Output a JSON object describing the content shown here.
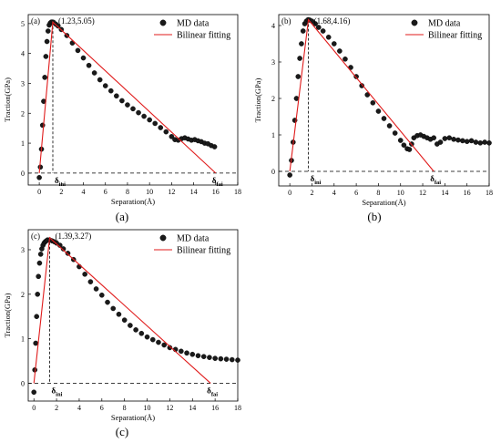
{
  "chart_data": [
    {
      "type": "scatter",
      "panel_label": "(a)",
      "caption": "(a)",
      "xlabel": "Separation(Å)",
      "ylabel": "Traction(GPa)",
      "xlim": [
        -1,
        18
      ],
      "ylim": [
        -0.4,
        5.3
      ],
      "x_ticks": [
        "0",
        "2",
        "4",
        "6",
        "8",
        "10",
        "12",
        "14",
        "16",
        "18"
      ],
      "y_ticks": [
        "0",
        "1",
        "2",
        "3",
        "4",
        "5"
      ],
      "peak_label": "(1.23,5.05)",
      "delta_ini": {
        "symbol": "δ",
        "subscript": "ini",
        "x": 1.23
      },
      "delta_fai": {
        "symbol": "δ",
        "subscript": "fai",
        "x": 16.0
      },
      "legend": [
        "MD data",
        "Bilinear fitting"
      ],
      "legend_position": "top-right",
      "series": [
        {
          "name": "MD data",
          "x": [
            0,
            0.1,
            0.2,
            0.3,
            0.4,
            0.5,
            0.6,
            0.7,
            0.8,
            0.9,
            1.0,
            1.1,
            1.2,
            1.3,
            1.5,
            1.7,
            2,
            2.5,
            3,
            3.5,
            4,
            4.5,
            5,
            5.5,
            6,
            6.5,
            7,
            7.5,
            8,
            8.5,
            9,
            9.5,
            10,
            10.5,
            11,
            11.5,
            12,
            12.3,
            12.6,
            12.9,
            13.2,
            13.5,
            13.8,
            14.1,
            14.4,
            14.7,
            15,
            15.3,
            15.6,
            15.9
          ],
          "y": [
            -0.15,
            0.2,
            0.8,
            1.6,
            2.4,
            3.2,
            3.9,
            4.4,
            4.75,
            4.95,
            5.02,
            5.05,
            5.05,
            5.04,
            4.98,
            4.92,
            4.8,
            4.6,
            4.35,
            4.1,
            3.85,
            3.6,
            3.35,
            3.12,
            2.92,
            2.75,
            2.58,
            2.42,
            2.28,
            2.15,
            2.02,
            1.9,
            1.78,
            1.66,
            1.52,
            1.38,
            1.22,
            1.12,
            1.1,
            1.15,
            1.18,
            1.14,
            1.1,
            1.12,
            1.08,
            1.05,
            1.0,
            0.98,
            0.92,
            0.88
          ]
        },
        {
          "name": "Bilinear fitting",
          "x": [
            0,
            1.23,
            16.0
          ],
          "y": [
            0,
            5.05,
            0
          ]
        }
      ]
    },
    {
      "type": "scatter",
      "panel_label": "(b)",
      "caption": "(b)",
      "xlabel": "Separation(Å)",
      "ylabel": "Traction(GPa)",
      "xlim": [
        -1,
        18
      ],
      "ylim": [
        -0.4,
        4.3
      ],
      "x_ticks": [
        "0",
        "2",
        "4",
        "6",
        "8",
        "10",
        "12",
        "14",
        "16",
        "18"
      ],
      "y_ticks": [
        "0",
        "1",
        "2",
        "3",
        "4"
      ],
      "peak_label": "(1.68,4.16)",
      "delta_ini": {
        "symbol": "δ",
        "subscript": "ini",
        "x": 1.68
      },
      "delta_fai": {
        "symbol": "δ",
        "subscript": "fai",
        "x": 13.0
      },
      "legend": [
        "MD data",
        "Bilinear fitting"
      ],
      "legend_position": "top-right",
      "series": [
        {
          "name": "MD data",
          "x": [
            0,
            0.15,
            0.3,
            0.45,
            0.6,
            0.75,
            0.9,
            1.05,
            1.2,
            1.35,
            1.5,
            1.65,
            1.8,
            2,
            2.3,
            2.6,
            3,
            3.5,
            4,
            4.5,
            5,
            5.5,
            6,
            6.5,
            7,
            7.5,
            8,
            8.5,
            9,
            9.5,
            10,
            10.3,
            10.6,
            10.8,
            11,
            11.2,
            11.5,
            11.8,
            12.1,
            12.4,
            12.7,
            13,
            13.3,
            13.6,
            14,
            14.4,
            14.8,
            15.2,
            15.6,
            16,
            16.4,
            16.8,
            17.2,
            17.6,
            18
          ],
          "y": [
            -0.1,
            0.3,
            0.8,
            1.4,
            2.0,
            2.6,
            3.1,
            3.5,
            3.85,
            4.05,
            4.12,
            4.16,
            4.15,
            4.12,
            4.05,
            3.95,
            3.85,
            3.68,
            3.5,
            3.3,
            3.08,
            2.85,
            2.6,
            2.35,
            2.1,
            1.88,
            1.65,
            1.45,
            1.25,
            1.05,
            0.85,
            0.72,
            0.62,
            0.6,
            0.75,
            0.92,
            0.98,
            1.0,
            0.96,
            0.92,
            0.88,
            0.92,
            0.75,
            0.8,
            0.9,
            0.92,
            0.88,
            0.86,
            0.84,
            0.82,
            0.84,
            0.8,
            0.78,
            0.8,
            0.78
          ]
        },
        {
          "name": "Bilinear fitting",
          "x": [
            0,
            1.68,
            13.0
          ],
          "y": [
            0,
            4.16,
            0
          ]
        }
      ]
    },
    {
      "type": "scatter",
      "panel_label": "(c)",
      "caption": "(c)",
      "xlabel": "Separation(Å)",
      "ylabel": "Traction(GPa)",
      "xlim": [
        -0.5,
        18
      ],
      "ylim": [
        -0.4,
        3.45
      ],
      "x_ticks": [
        "0",
        "2",
        "4",
        "6",
        "8",
        "10",
        "12",
        "14",
        "16",
        "18"
      ],
      "y_ticks": [
        "0",
        "1",
        "2",
        "3"
      ],
      "peak_label": "(1.39,3.27)",
      "delta_ini": {
        "symbol": "δ",
        "subscript": "ini",
        "x": 1.39
      },
      "delta_fai": {
        "symbol": "δ",
        "subscript": "fai",
        "x": 15.6
      },
      "legend": [
        "MD data",
        "Bilinear fitting"
      ],
      "legend_position": "top-right",
      "series": [
        {
          "name": "MD data",
          "x": [
            0,
            0.08,
            0.16,
            0.24,
            0.32,
            0.4,
            0.5,
            0.6,
            0.7,
            0.8,
            0.9,
            1.0,
            1.1,
            1.2,
            1.4,
            1.6,
            1.8,
            2.0,
            2.3,
            2.6,
            3,
            3.5,
            4,
            4.5,
            5,
            5.5,
            6,
            6.5,
            7,
            7.5,
            8,
            8.5,
            9,
            9.5,
            10,
            10.5,
            11,
            11.5,
            12,
            12.5,
            13,
            13.5,
            14,
            14.5,
            15,
            15.5,
            16,
            16.5,
            17,
            17.5,
            18
          ],
          "y": [
            -0.2,
            0.3,
            0.9,
            1.5,
            2.0,
            2.4,
            2.7,
            2.9,
            3.02,
            3.1,
            3.15,
            3.18,
            3.2,
            3.22,
            3.22,
            3.2,
            3.18,
            3.15,
            3.1,
            3.02,
            2.92,
            2.78,
            2.62,
            2.45,
            2.28,
            2.12,
            1.98,
            1.82,
            1.68,
            1.55,
            1.42,
            1.3,
            1.2,
            1.12,
            1.04,
            0.98,
            0.92,
            0.86,
            0.8,
            0.76,
            0.72,
            0.68,
            0.65,
            0.62,
            0.6,
            0.58,
            0.56,
            0.55,
            0.54,
            0.53,
            0.52
          ]
        },
        {
          "name": "Bilinear fitting",
          "x": [
            0,
            1.39,
            15.6
          ],
          "y": [
            0,
            3.27,
            0
          ]
        }
      ]
    }
  ]
}
